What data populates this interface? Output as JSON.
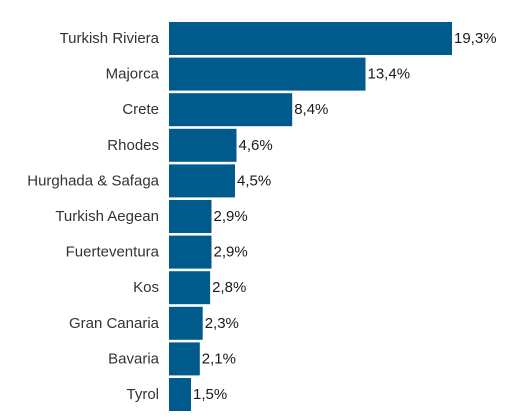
{
  "chart_data": {
    "type": "bar",
    "orientation": "horizontal",
    "categories": [
      "Turkish Riviera",
      "Majorca",
      "Crete",
      "Rhodes",
      "Hurghada & Safaga",
      "Turkish Aegean",
      "Fuerteventura",
      "Kos",
      "Gran Canaria",
      "Bavaria",
      "Tyrol"
    ],
    "values": [
      19.3,
      13.4,
      8.4,
      4.6,
      4.5,
      2.9,
      2.9,
      2.8,
      2.3,
      2.1,
      1.5
    ],
    "value_labels": [
      "19,3%",
      "13,4%",
      "8,4%",
      "4,6%",
      "4,5%",
      "2,9%",
      "2,9%",
      "2,8%",
      "2,3%",
      "2,1%",
      "1,5%"
    ],
    "unit": "%",
    "title": "",
    "xlabel": "",
    "ylabel": "",
    "xlim": [
      0,
      19.3
    ],
    "grid": false,
    "legend": "none",
    "colors": {
      "bar": "#005a8c",
      "category_text": "#333333",
      "value_text": "#1a1a1a"
    }
  }
}
